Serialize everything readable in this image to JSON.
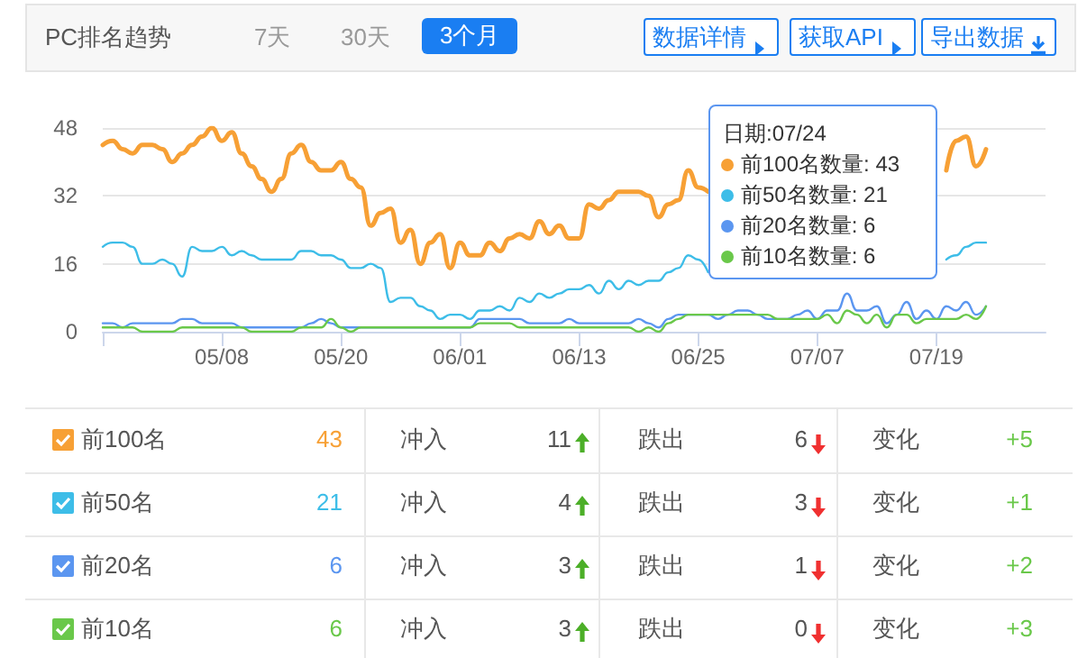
{
  "chart_data": {
    "type": "line",
    "title": "PC排名趋势",
    "x": [
      "--04-26",
      "--04-27",
      "--04-28",
      "--04-29",
      "--04-30",
      "--05-01",
      "--05-02",
      "--05-03",
      "--05-04",
      "--05-05",
      "--05-06",
      "--05-07",
      "--05-08",
      "--05-09",
      "--05-10",
      "--05-11",
      "--05-12",
      "--05-13",
      "--05-14",
      "--05-15",
      "--05-16",
      "--05-17",
      "--05-18",
      "--05-19",
      "--05-20",
      "--05-21",
      "--05-22",
      "--05-23",
      "--05-24",
      "--05-25",
      "--05-26",
      "--05-27",
      "--05-28",
      "--05-29",
      "--05-30",
      "--05-31",
      "--06-01",
      "--06-02",
      "--06-03",
      "--06-04",
      "--06-05",
      "--06-06",
      "--06-07",
      "--06-08",
      "--06-09",
      "--06-10",
      "--06-11",
      "--06-12",
      "--06-13",
      "--06-14",
      "--06-15",
      "--06-16",
      "--06-17",
      "--06-18",
      "--06-19",
      "--06-20",
      "--06-21",
      "--06-22",
      "--06-23",
      "--06-24",
      "--06-25",
      "--06-26",
      "--06-27",
      "--06-28",
      "--06-29",
      "--06-30",
      "--07-01",
      "--07-02",
      "--07-03",
      "--07-04",
      "--07-05",
      "--07-06",
      "--07-07",
      "--07-08",
      "--07-09",
      "--07-10",
      "--07-11",
      "--07-12",
      "--07-13",
      "--07-14",
      "--07-15",
      "--07-16",
      "--07-17",
      "--07-18",
      "--07-19",
      "--07-20",
      "--07-21",
      "--07-22",
      "--07-23",
      "--07-24"
    ],
    "series": [
      {
        "name": "前100名",
        "color": "#f7a035",
        "values": [
          44,
          45,
          43,
          42,
          44,
          44,
          43,
          40,
          42,
          44,
          46,
          48,
          45,
          47,
          42,
          39,
          36,
          33,
          36,
          42,
          44,
          40,
          38,
          38,
          40,
          36,
          34,
          25,
          28,
          29,
          21,
          24,
          16,
          21,
          23,
          15,
          21,
          18,
          18,
          21,
          19,
          22,
          23,
          22,
          26,
          23,
          25,
          22,
          22,
          30,
          29,
          31,
          33,
          33,
          33,
          32,
          27,
          30,
          31,
          38,
          34,
          33,
          null,
          null,
          null,
          null,
          null,
          null,
          null,
          null,
          null,
          null,
          null,
          null,
          null,
          null,
          null,
          null,
          null,
          null,
          null,
          null,
          null,
          null,
          null,
          38,
          45,
          46,
          39,
          43
        ]
      },
      {
        "name": "前50名",
        "color": "#3dbde8",
        "values": [
          20,
          21,
          21,
          20,
          16,
          16,
          17,
          16,
          13,
          20,
          19,
          19,
          20,
          18,
          19,
          18,
          17,
          17,
          17,
          17,
          19,
          19,
          18,
          18,
          17,
          15,
          15,
          16,
          15,
          7,
          8,
          8,
          6,
          5,
          3,
          4,
          4,
          3,
          5,
          5,
          6,
          5,
          8,
          7,
          9,
          8,
          9,
          10,
          10,
          11,
          9,
          12,
          10,
          12,
          11,
          12,
          12,
          14,
          15,
          18,
          17,
          14,
          null,
          null,
          null,
          null,
          null,
          null,
          null,
          null,
          null,
          null,
          null,
          null,
          null,
          null,
          null,
          null,
          null,
          null,
          null,
          null,
          null,
          null,
          null,
          17,
          18,
          20,
          21,
          21
        ]
      },
      {
        "name": "前20名",
        "color": "#5b96f0",
        "values": [
          2,
          2,
          1,
          2,
          2,
          2,
          2,
          2,
          3,
          3,
          2,
          2,
          2,
          2,
          1,
          1,
          1,
          1,
          1,
          1,
          1,
          2,
          3,
          2,
          1,
          1,
          1,
          1,
          1,
          1,
          1,
          1,
          1,
          1,
          1,
          1,
          1,
          1,
          3,
          3,
          3,
          3,
          3,
          2,
          2,
          2,
          2,
          3,
          2,
          2,
          2,
          2,
          2,
          2,
          3,
          2,
          1,
          3,
          4,
          4,
          4,
          4,
          3,
          4,
          5,
          5,
          4,
          3,
          3,
          3,
          4,
          5,
          3,
          5,
          5,
          9,
          5,
          5,
          6,
          2,
          4,
          7,
          3,
          5,
          3,
          6,
          5,
          7,
          4,
          6
        ]
      },
      {
        "name": "前10名",
        "color": "#6ac84a",
        "values": [
          1,
          1,
          1,
          1,
          0,
          0,
          0,
          0,
          1,
          1,
          1,
          1,
          1,
          1,
          1,
          0,
          0,
          0,
          0,
          0,
          1,
          1,
          1,
          3,
          1,
          0,
          1,
          1,
          1,
          1,
          1,
          1,
          1,
          1,
          1,
          1,
          1,
          1,
          2,
          2,
          2,
          2,
          1,
          1,
          1,
          1,
          1,
          1,
          1,
          1,
          1,
          1,
          1,
          1,
          0,
          1,
          0,
          2,
          3,
          4,
          4,
          4,
          4,
          4,
          4,
          4,
          4,
          4,
          3,
          3,
          3,
          3,
          3,
          4,
          2,
          5,
          4,
          2,
          4,
          1,
          4,
          4,
          2,
          3,
          3,
          3,
          3,
          4,
          3,
          6
        ]
      }
    ],
    "xlim": [
      "--04-26",
      "--07-30"
    ],
    "xticks": [
      {
        "value": "--04-26",
        "label": null
      },
      {
        "value": "--05-08",
        "label": "05/08"
      },
      {
        "value": "--05-20",
        "label": "05/20"
      },
      {
        "value": "--06-01",
        "label": "06/01"
      },
      {
        "value": "--06-13",
        "label": "06/13"
      },
      {
        "value": "--06-25",
        "label": "06/25"
      },
      {
        "value": "--07-07",
        "label": "07/07"
      },
      {
        "value": "--07-19",
        "label": "07/19"
      }
    ],
    "ylim": [
      0,
      48
    ],
    "yticks": [
      0,
      16,
      32,
      48
    ],
    "grid": "y",
    "legend": "bottom",
    "marker": "none",
    "line_style": "solid",
    "annotations": [
      "7天",
      "30天",
      "3个月",
      "数据详情",
      "获取API",
      "导出数据",
      "日期:07/24",
      "前100名数量: 43",
      "前50名数量: 21",
      "前20名数量: 6",
      "前10名数量: 6",
      "43",
      "冲入",
      "11",
      "跌出",
      "6",
      "变化",
      "+5",
      "21",
      "冲入",
      "4",
      "跌出",
      "3",
      "变化",
      "+1",
      "6",
      "冲入",
      "3",
      "跌出",
      "1",
      "变化",
      "+2",
      "6",
      "冲入",
      "3",
      "跌出",
      "0",
      "变化",
      "+3"
    ]
  }
}
